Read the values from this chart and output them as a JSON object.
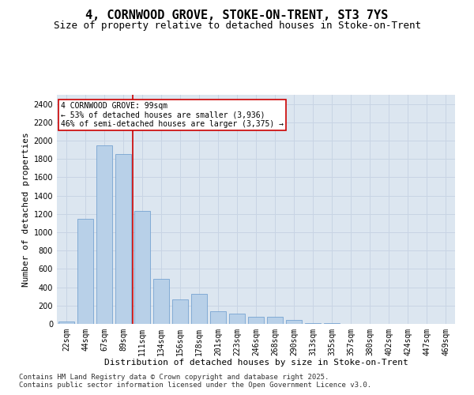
{
  "title_line1": "4, CORNWOOD GROVE, STOKE-ON-TRENT, ST3 7YS",
  "title_line2": "Size of property relative to detached houses in Stoke-on-Trent",
  "xlabel": "Distribution of detached houses by size in Stoke-on-Trent",
  "ylabel": "Number of detached properties",
  "categories": [
    "22sqm",
    "44sqm",
    "67sqm",
    "89sqm",
    "111sqm",
    "134sqm",
    "156sqm",
    "178sqm",
    "201sqm",
    "223sqm",
    "246sqm",
    "268sqm",
    "290sqm",
    "313sqm",
    "335sqm",
    "357sqm",
    "380sqm",
    "402sqm",
    "424sqm",
    "447sqm",
    "469sqm"
  ],
  "values": [
    30,
    1150,
    1950,
    1850,
    1230,
    490,
    270,
    330,
    140,
    110,
    80,
    75,
    40,
    10,
    5,
    3,
    2,
    1,
    1,
    0,
    0
  ],
  "bar_color": "#b8d0e8",
  "bar_edge_color": "#6699cc",
  "vline_color": "#cc0000",
  "annotation_line1": "4 CORNWOOD GROVE: 99sqm",
  "annotation_line2": "← 53% of detached houses are smaller (3,936)",
  "annotation_line3": "46% of semi-detached houses are larger (3,375) →",
  "annotation_box_color": "#ffffff",
  "annotation_box_edge": "#cc0000",
  "ylim": [
    0,
    2500
  ],
  "yticks": [
    0,
    200,
    400,
    600,
    800,
    1000,
    1200,
    1400,
    1600,
    1800,
    2000,
    2200,
    2400
  ],
  "grid_color": "#c8d4e4",
  "background_color": "#dce6f0",
  "footer_line1": "Contains HM Land Registry data © Crown copyright and database right 2025.",
  "footer_line2": "Contains public sector information licensed under the Open Government Licence v3.0.",
  "title_fontsize": 11,
  "subtitle_fontsize": 9,
  "axis_label_fontsize": 8,
  "tick_fontsize": 7,
  "annotation_fontsize": 7,
  "footer_fontsize": 6.5
}
